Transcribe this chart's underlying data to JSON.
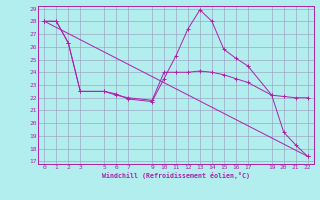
{
  "xlabel": "Windchill (Refroidissement éolien,°C)",
  "bg_color": "#b3eeee",
  "grid_color": "#9999bb",
  "line_color": "#aa22aa",
  "line1_x": [
    0,
    1,
    2,
    3,
    5,
    6,
    7,
    9,
    10,
    11,
    12,
    13,
    14,
    15,
    16,
    17,
    19,
    20,
    21,
    22
  ],
  "line1_y": [
    28,
    28,
    26.3,
    22.5,
    22.5,
    22.3,
    21.9,
    21.7,
    23.5,
    25.3,
    27.4,
    28.9,
    28.0,
    25.8,
    25.1,
    24.5,
    22.2,
    19.3,
    18.3,
    17.4
  ],
  "line2_x": [
    0,
    1,
    2,
    3,
    5,
    6,
    7,
    9,
    10,
    11,
    12,
    13,
    14,
    15,
    16,
    17,
    19,
    20,
    21,
    22
  ],
  "line2_y": [
    28,
    28,
    26.3,
    22.5,
    22.5,
    22.2,
    22.0,
    21.8,
    24.0,
    24.0,
    24.0,
    24.1,
    24.0,
    23.8,
    23.5,
    23.2,
    22.2,
    22.1,
    22.0,
    22.0
  ],
  "line3_x": [
    0,
    22
  ],
  "line3_y": [
    28,
    17.4
  ],
  "ylim": [
    17,
    29
  ],
  "xlim": [
    -0.5,
    22.5
  ],
  "yticks": [
    17,
    18,
    19,
    20,
    21,
    22,
    23,
    24,
    25,
    26,
    27,
    28,
    29
  ],
  "xticks": [
    0,
    1,
    2,
    3,
    5,
    6,
    7,
    9,
    10,
    11,
    12,
    13,
    14,
    15,
    16,
    17,
    19,
    20,
    21,
    22
  ]
}
